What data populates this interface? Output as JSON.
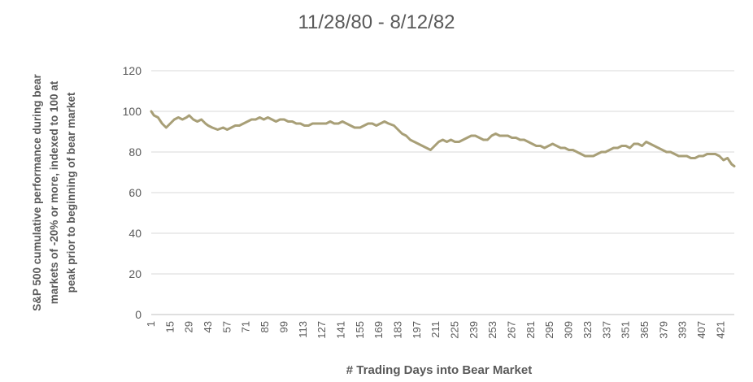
{
  "chart_data": {
    "type": "line",
    "title": "11/28/80 - 8/12/82",
    "xlabel": "# Trading Days into Bear Market",
    "ylabel_lines": [
      "S&P 500 cumulative performance during bear",
      "markets of -20% or more, indexed to 100 at",
      "peak prior to beginning of bear market"
    ],
    "ylim": [
      0,
      120
    ],
    "y_ticks": [
      0,
      20,
      40,
      60,
      80,
      100,
      120
    ],
    "x_range": [
      1,
      431
    ],
    "x_ticks": [
      1,
      15,
      29,
      43,
      57,
      71,
      85,
      99,
      113,
      127,
      141,
      155,
      169,
      183,
      197,
      211,
      225,
      239,
      253,
      267,
      281,
      295,
      309,
      323,
      337,
      351,
      365,
      379,
      393,
      407,
      421
    ],
    "grid": true,
    "legend": "none",
    "line_color": "#A89F77",
    "series": [
      {
        "x": [
          1,
          3,
          6,
          9,
          12,
          15,
          18,
          21,
          24,
          27,
          29,
          32,
          35,
          38,
          41,
          43,
          46,
          50,
          54,
          57,
          60,
          63,
          66,
          69,
          72,
          75,
          78,
          81,
          84,
          87,
          90,
          93,
          96,
          99,
          102,
          105,
          108,
          111,
          114,
          117,
          120,
          123,
          127,
          130,
          133,
          136,
          139,
          142,
          145,
          148,
          151,
          155,
          158,
          161,
          164,
          167,
          170,
          173,
          176,
          180,
          183,
          186,
          189,
          192,
          195,
          198,
          201,
          204,
          207,
          210,
          213,
          216,
          219,
          222,
          225,
          228,
          231,
          234,
          237,
          240,
          243,
          246,
          249,
          252,
          255,
          258,
          261,
          264,
          267,
          270,
          273,
          276,
          279,
          282,
          285,
          288,
          291,
          294,
          297,
          300,
          303,
          306,
          309,
          312,
          315,
          318,
          321,
          324,
          327,
          330,
          333,
          336,
          339,
          342,
          345,
          348,
          351,
          354,
          357,
          360,
          363,
          366,
          369,
          372,
          375,
          378,
          381,
          384,
          387,
          390,
          393,
          396,
          399,
          402,
          405,
          408,
          411,
          414,
          417,
          420,
          423,
          426,
          429,
          431
        ],
        "values": [
          100,
          98,
          97,
          94,
          92,
          94,
          96,
          97,
          96,
          97,
          98,
          96,
          95,
          96,
          94,
          93,
          92,
          91,
          92,
          91,
          92,
          93,
          93,
          94,
          95,
          96,
          96,
          97,
          96,
          97,
          96,
          95,
          96,
          96,
          95,
          95,
          94,
          94,
          93,
          93,
          94,
          94,
          94,
          94,
          95,
          94,
          94,
          95,
          94,
          93,
          92,
          92,
          93,
          94,
          94,
          93,
          94,
          95,
          94,
          93,
          91,
          89,
          88,
          86,
          85,
          84,
          83,
          82,
          81,
          83,
          85,
          86,
          85,
          86,
          85,
          85,
          86,
          87,
          88,
          88,
          87,
          86,
          86,
          88,
          89,
          88,
          88,
          88,
          87,
          87,
          86,
          86,
          85,
          84,
          83,
          83,
          82,
          83,
          84,
          83,
          82,
          82,
          81,
          81,
          80,
          79,
          78,
          78,
          78,
          79,
          80,
          80,
          81,
          82,
          82,
          83,
          83,
          82,
          84,
          84,
          83,
          85,
          84,
          83,
          82,
          81,
          80,
          80,
          79,
          78,
          78,
          78,
          77,
          77,
          78,
          78,
          79,
          79,
          79,
          78,
          76,
          77,
          74,
          73
        ]
      }
    ]
  }
}
